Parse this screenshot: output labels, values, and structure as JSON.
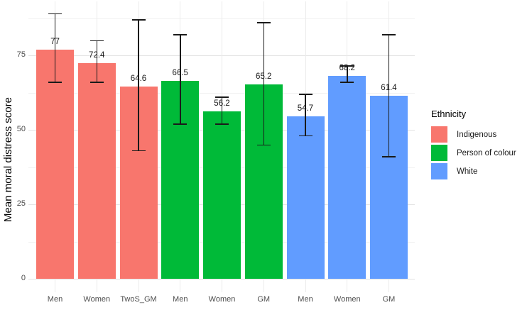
{
  "chart_data": {
    "type": "bar",
    "title": "",
    "xlabel": "",
    "ylabel": "Mean moral distress score",
    "ylim": [
      0,
      93
    ],
    "y_ticks": [
      0,
      25,
      50,
      75
    ],
    "y_minor_gridlines": [
      12.5,
      37.5,
      62.5,
      87.5
    ],
    "grid": "on",
    "legend_position": "right",
    "categories": [
      "Men",
      "Women",
      "TwoS_GM",
      "Men",
      "Women",
      "GM",
      "Men",
      "Women",
      "GM"
    ],
    "bars": [
      {
        "category": "Men",
        "group": "Indigenous",
        "value": 77,
        "label": "77",
        "error_low": 66,
        "error_high": 89
      },
      {
        "category": "Women",
        "group": "Indigenous",
        "value": 72.4,
        "label": "72.4",
        "error_low": 66,
        "error_high": 80
      },
      {
        "category": "TwoS_GM",
        "group": "Indigenous",
        "value": 64.6,
        "label": "64.6",
        "error_low": 43,
        "error_high": 87
      },
      {
        "category": "Men",
        "group": "Person of colour",
        "value": 66.5,
        "label": "66.5",
        "error_low": 52,
        "error_high": 82
      },
      {
        "category": "Women",
        "group": "Person of colour",
        "value": 56.2,
        "label": "56.2",
        "error_low": 52,
        "error_high": 61
      },
      {
        "category": "GM",
        "group": "Person of colour",
        "value": 65.2,
        "label": "65.2",
        "error_low": 45,
        "error_high": 86
      },
      {
        "category": "Men",
        "group": "White",
        "value": 54.7,
        "label": "54.7",
        "error_low": 48,
        "error_high": 62
      },
      {
        "category": "Women",
        "group": "White",
        "value": 68.2,
        "label": "68.2",
        "error_low": 66,
        "error_high": 71.5
      },
      {
        "category": "GM",
        "group": "White",
        "value": 61.4,
        "label": "61.4",
        "error_low": 41,
        "error_high": 82
      }
    ],
    "group_colors": {
      "Indigenous": "#F8766D",
      "Person of colour": "#00BA38",
      "White": "#619CFF"
    },
    "legend": {
      "title": "Ethnicity",
      "items": [
        {
          "label": "Indigenous",
          "color": "#F8766D"
        },
        {
          "label": "Person of colour",
          "color": "#00BA38"
        },
        {
          "label": "White",
          "color": "#619CFF"
        }
      ]
    },
    "colors": {
      "axis_text": "#4d4d4d",
      "label_text": "#1a1a1a",
      "major_gridline": "#e3e3e3",
      "minor_gridline": "#f1f1f1",
      "background": "#ffffff"
    }
  }
}
